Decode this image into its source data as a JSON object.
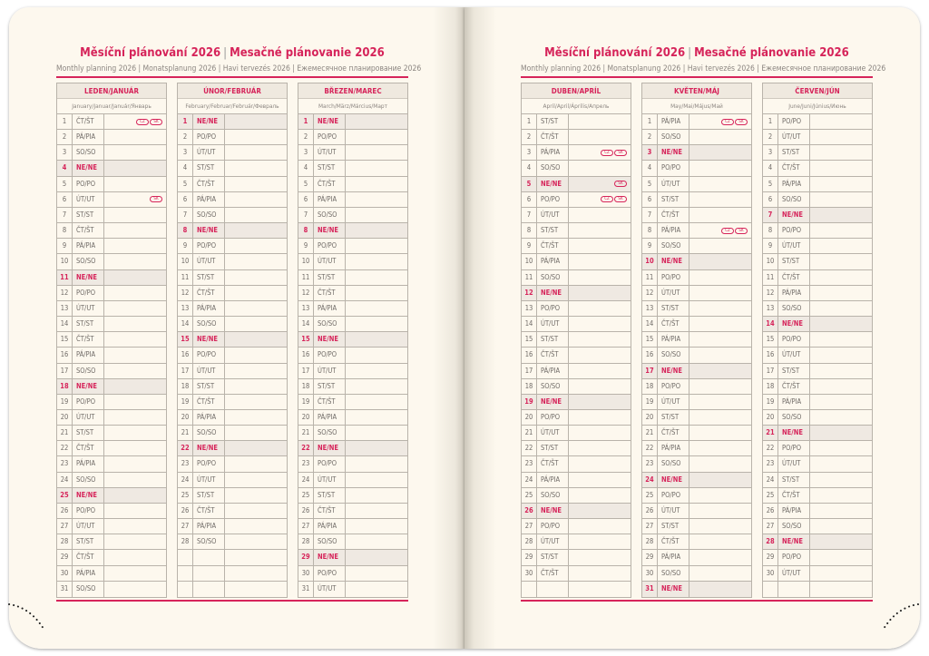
{
  "left_page": {
    "title_cz": "Měsíční plánování 2026",
    "title_sk": "Mesačné plánovanie 2026",
    "subtitle": "Monthly planning 2026 | Monatsplanung 2026 | Havi tervezés 2026 | Ежемесячное планирование 2026",
    "months": [
      {
        "name": "LEDEN/JANUÁR",
        "sub": "January/Januar/Január/Январь",
        "days": [
          "ČT/ŠT",
          "PÁ/PIA",
          "SO/SO",
          "NE/NE",
          "PO/PO",
          "ÚT/UT",
          "ST/ST",
          "ČT/ŠT",
          "PÁ/PIA",
          "SO/SO",
          "NE/NE",
          "PO/PO",
          "ÚT/UT",
          "ST/ST",
          "ČT/ŠT",
          "PÁ/PIA",
          "SO/SO",
          "NE/NE",
          "PO/PO",
          "ÚT/UT",
          "ST/ST",
          "ČT/ŠT",
          "PÁ/PIA",
          "SO/SO",
          "NE/NE",
          "PO/PO",
          "ÚT/UT",
          "ST/ST",
          "ČT/ŠT",
          "PÁ/PIA",
          "SO/SO"
        ],
        "holidays": {
          "1": [
            "CZ",
            "SK"
          ],
          "6": [
            "SK"
          ]
        }
      },
      {
        "name": "ÚNOR/FEBRUÁR",
        "sub": "February/Februar/Február/Февраль",
        "days": [
          "NE/NE",
          "PO/PO",
          "ÚT/UT",
          "ST/ST",
          "ČT/ŠT",
          "PÁ/PIA",
          "SO/SO",
          "NE/NE",
          "PO/PO",
          "ÚT/UT",
          "ST/ST",
          "ČT/ŠT",
          "PÁ/PIA",
          "SO/SO",
          "NE/NE",
          "PO/PO",
          "ÚT/UT",
          "ST/ST",
          "ČT/ŠT",
          "PÁ/PIA",
          "SO/SO",
          "NE/NE",
          "PO/PO",
          "ÚT/UT",
          "ST/ST",
          "ČT/ŠT",
          "PÁ/PIA",
          "SO/SO"
        ],
        "holidays": {}
      },
      {
        "name": "BŘEZEN/MAREC",
        "sub": "March/März/Március/Март",
        "days": [
          "NE/NE",
          "PO/PO",
          "ÚT/UT",
          "ST/ST",
          "ČT/ŠT",
          "PÁ/PIA",
          "SO/SO",
          "NE/NE",
          "PO/PO",
          "ÚT/UT",
          "ST/ST",
          "ČT/ŠT",
          "PÁ/PIA",
          "SO/SO",
          "NE/NE",
          "PO/PO",
          "ÚT/UT",
          "ST/ST",
          "ČT/ŠT",
          "PÁ/PIA",
          "SO/SO",
          "NE/NE",
          "PO/PO",
          "ÚT/UT",
          "ST/ST",
          "ČT/ŠT",
          "PÁ/PIA",
          "SO/SO",
          "NE/NE",
          "PO/PO",
          "ÚT/UT"
        ],
        "holidays": {}
      }
    ]
  },
  "right_page": {
    "title_cz": "Měsíční plánování 2026",
    "title_sk": "Mesačné plánovanie 2026",
    "subtitle": "Monthly planning 2026 | Monatsplanung 2026 | Havi tervezés 2026 | Ежемесячное планирование 2026",
    "months": [
      {
        "name": "DUBEN/APRÍL",
        "sub": "April/April/Április/Апрель",
        "days": [
          "ST/ST",
          "ČT/ŠT",
          "PÁ/PIA",
          "SO/SO",
          "NE/NE",
          "PO/PO",
          "ÚT/UT",
          "ST/ST",
          "ČT/ŠT",
          "PÁ/PIA",
          "SO/SO",
          "NE/NE",
          "PO/PO",
          "ÚT/UT",
          "ST/ST",
          "ČT/ŠT",
          "PÁ/PIA",
          "SO/SO",
          "NE/NE",
          "PO/PO",
          "ÚT/UT",
          "ST/ST",
          "ČT/ŠT",
          "PÁ/PIA",
          "SO/SO",
          "NE/NE",
          "PO/PO",
          "ÚT/UT",
          "ST/ST",
          "ČT/ŠT"
        ],
        "holidays": {
          "3": [
            "CZ",
            "SK"
          ],
          "5": [
            "SK"
          ],
          "6": [
            "CZ",
            "SK"
          ]
        }
      },
      {
        "name": "KVĚTEN/MÁJ",
        "sub": "May/Mai/Május/Май",
        "days": [
          "PÁ/PIA",
          "SO/SO",
          "NE/NE",
          "PO/PO",
          "ÚT/UT",
          "ST/ST",
          "ČT/ŠT",
          "PÁ/PIA",
          "SO/SO",
          "NE/NE",
          "PO/PO",
          "ÚT/UT",
          "ST/ST",
          "ČT/ŠT",
          "PÁ/PIA",
          "SO/SO",
          "NE/NE",
          "PO/PO",
          "ÚT/UT",
          "ST/ST",
          "ČT/ŠT",
          "PÁ/PIA",
          "SO/SO",
          "NE/NE",
          "PO/PO",
          "ÚT/UT",
          "ST/ST",
          "ČT/ŠT",
          "PÁ/PIA",
          "SO/SO",
          "NE/NE"
        ],
        "holidays": {
          "1": [
            "CZ",
            "SK"
          ],
          "8": [
            "CZ",
            "SK"
          ]
        }
      },
      {
        "name": "ČERVEN/JÚN",
        "sub": "June/Juni/Június/Июнь",
        "days": [
          "PO/PO",
          "ÚT/UT",
          "ST/ST",
          "ČT/ŠT",
          "PÁ/PIA",
          "SO/SO",
          "NE/NE",
          "PO/PO",
          "ÚT/UT",
          "ST/ST",
          "ČT/ŠT",
          "PÁ/PIA",
          "SO/SO",
          "NE/NE",
          "PO/PO",
          "ÚT/UT",
          "ST/ST",
          "ČT/ŠT",
          "PÁ/PIA",
          "SO/SO",
          "NE/NE",
          "PO/PO",
          "ÚT/UT",
          "ST/ST",
          "ČT/ŠT",
          "PÁ/PIA",
          "SO/SO",
          "NE/NE",
          "PO/PO",
          "ÚT/UT"
        ],
        "holidays": {}
      }
    ]
  },
  "colors": {
    "accent": "#d6245a",
    "paper": "#fdf8ee",
    "grid": "#b9b3aa",
    "sunday_bg": "#efe9e2"
  }
}
